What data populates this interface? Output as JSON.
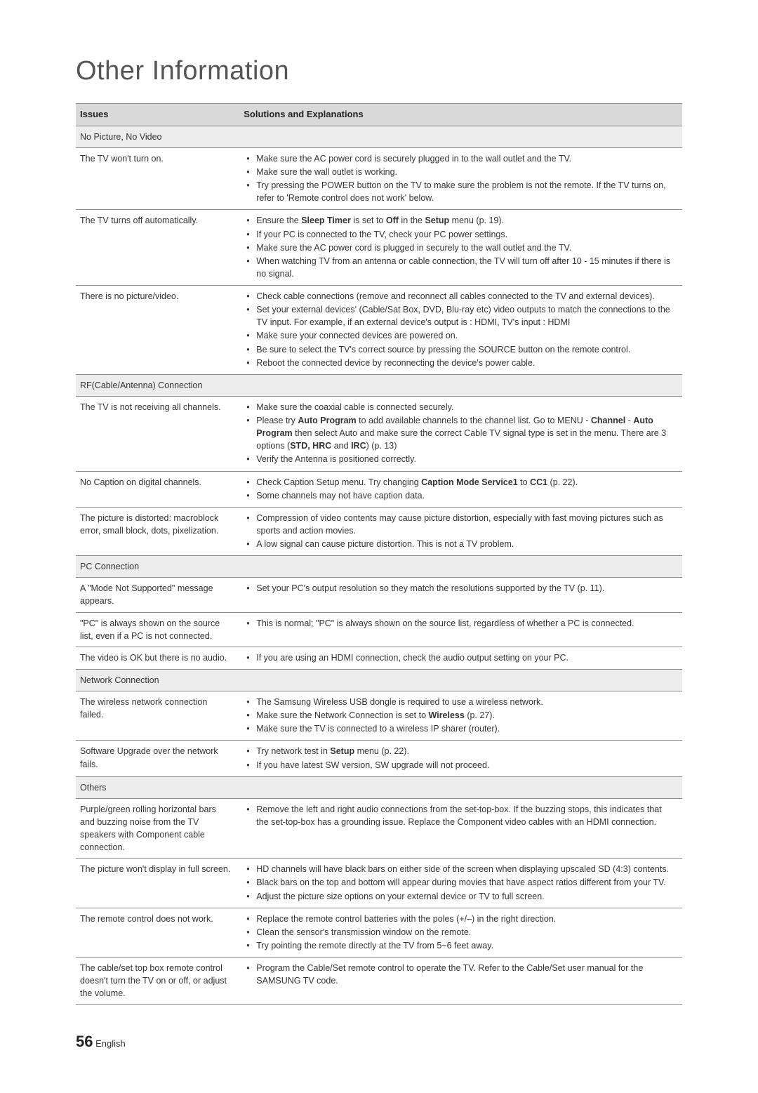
{
  "title": "Other Information",
  "columns": {
    "issues": "Issues",
    "solutions": "Solutions and Explanations"
  },
  "sections": [
    {
      "heading": "No Picture, No Video",
      "rows": [
        {
          "issue": "The TV won't turn on.",
          "items": [
            [
              {
                "t": "Make sure the AC power cord is securely plugged in to the wall outlet and the TV."
              }
            ],
            [
              {
                "t": "Make sure the wall outlet is working."
              }
            ],
            [
              {
                "t": "Try pressing the POWER button on the TV to make sure the problem is not the remote. If the TV turns on, refer to 'Remote control does not work' below."
              }
            ]
          ]
        },
        {
          "issue": "The TV turns off automatically.",
          "items": [
            [
              {
                "t": "Ensure the "
              },
              {
                "t": "Sleep Timer",
                "b": true
              },
              {
                "t": " is set to "
              },
              {
                "t": "Off",
                "b": true
              },
              {
                "t": " in the "
              },
              {
                "t": "Setup",
                "b": true
              },
              {
                "t": " menu (p. 19)."
              }
            ],
            [
              {
                "t": "If your PC is connected to the TV, check your PC power settings."
              }
            ],
            [
              {
                "t": "Make sure the AC power cord is plugged in securely to the wall outlet and the TV."
              }
            ],
            [
              {
                "t": "When watching TV from an antenna or cable connection, the TV will turn off after 10 - 15 minutes if there is no signal."
              }
            ]
          ]
        },
        {
          "issue": "There is no picture/video.",
          "items": [
            [
              {
                "t": "Check cable connections (remove and reconnect all cables connected to the TV and external devices)."
              }
            ],
            [
              {
                "t": "Set your external devices' (Cable/Sat Box, DVD, Blu-ray etc) video outputs to match the connections to the TV input. For example, if an external device's output is : HDMI, TV's input : HDMI"
              }
            ],
            [
              {
                "t": "Make sure your connected devices are powered on."
              }
            ],
            [
              {
                "t": "Be sure to select the TV's correct source by pressing the SOURCE button on the remote control."
              }
            ],
            [
              {
                "t": "Reboot the connected device by reconnecting the device's power cable."
              }
            ]
          ]
        }
      ]
    },
    {
      "heading": "RF(Cable/Antenna) Connection",
      "rows": [
        {
          "issue": "The TV is not receiving all channels.",
          "items": [
            [
              {
                "t": "Make sure the coaxial cable is connected securely."
              }
            ],
            [
              {
                "t": "Please try "
              },
              {
                "t": "Auto Program",
                "b": true
              },
              {
                "t": " to add available channels to the channel list. Go to MENU - "
              },
              {
                "t": "Channel",
                "b": true
              },
              {
                "t": " - "
              },
              {
                "t": "Auto Program",
                "b": true
              },
              {
                "t": " then select Auto and make sure the correct Cable TV signal type is set in the menu. There are 3 options ("
              },
              {
                "t": "STD, HRC",
                "b": true
              },
              {
                "t": " and "
              },
              {
                "t": "IRC",
                "b": true
              },
              {
                "t": ") (p. 13)"
              }
            ],
            [
              {
                "t": "Verify the Antenna is positioned correctly."
              }
            ]
          ]
        },
        {
          "issue": "No Caption on digital channels.",
          "items": [
            [
              {
                "t": "Check Caption Setup menu. Try changing "
              },
              {
                "t": "Caption Mode Service1",
                "b": true
              },
              {
                "t": " to "
              },
              {
                "t": "CC1",
                "b": true
              },
              {
                "t": " (p. 22)."
              }
            ],
            [
              {
                "t": "Some channels may not have caption data."
              }
            ]
          ]
        },
        {
          "issue": "The picture is distorted: macroblock error, small block, dots, pixelization.",
          "items": [
            [
              {
                "t": "Compression of video contents may cause picture distortion, especially with fast moving pictures such as sports and action movies."
              }
            ],
            [
              {
                "t": "A low signal can cause picture distortion. This is not a TV problem."
              }
            ]
          ]
        }
      ]
    },
    {
      "heading": "PC Connection",
      "rows": [
        {
          "issue": "A \"Mode Not Supported\" message appears.",
          "items": [
            [
              {
                "t": "Set your PC's output resolution so they match the resolutions supported by the TV (p. 11)."
              }
            ]
          ]
        },
        {
          "issue": "\"PC\" is always shown on the source list, even if a PC is not connected.",
          "items": [
            [
              {
                "t": "This is normal; \"PC\" is always shown on the source list, regardless of whether a PC is connected."
              }
            ]
          ]
        },
        {
          "issue": "The video is OK but there is no audio.",
          "items": [
            [
              {
                "t": "If you are using an HDMI connection, check the audio output setting on your PC."
              }
            ]
          ]
        }
      ]
    },
    {
      "heading": "Network Connection",
      "rows": [
        {
          "issue": "The wireless network connection failed.",
          "items": [
            [
              {
                "t": "The Samsung Wireless USB dongle is required to use a wireless network."
              }
            ],
            [
              {
                "t": "Make sure the Network Connection is set to "
              },
              {
                "t": "Wireless",
                "b": true
              },
              {
                "t": " (p. 27)."
              }
            ],
            [
              {
                "t": "Make sure the TV is connected to a wireless IP sharer (router)."
              }
            ]
          ]
        },
        {
          "issue": "Software Upgrade over the network fails.",
          "items": [
            [
              {
                "t": "Try network test in "
              },
              {
                "t": "Setup",
                "b": true
              },
              {
                "t": " menu (p. 22)."
              }
            ],
            [
              {
                "t": "If you have latest SW version, SW upgrade will not proceed."
              }
            ]
          ]
        }
      ]
    },
    {
      "heading": "Others",
      "rows": [
        {
          "issue": "Purple/green rolling horizontal bars and buzzing noise from the TV speakers with Component cable connection.",
          "items": [
            [
              {
                "t": "Remove the left and right audio connections from the set-top-box. If the buzzing stops, this indicates that the set-top-box has a grounding issue. Replace the Component video cables with an HDMI connection."
              }
            ]
          ]
        },
        {
          "issue": "The picture won't display in full screen.",
          "items": [
            [
              {
                "t": "HD channels will have black bars on either side of the screen when displaying upscaled SD (4:3) contents."
              }
            ],
            [
              {
                "t": "Black bars on the top and bottom will appear during movies that have aspect ratios different from your TV."
              }
            ],
            [
              {
                "t": "Adjust the picture size options on your external device or TV to full screen."
              }
            ]
          ]
        },
        {
          "issue": "The remote control does not work.",
          "items": [
            [
              {
                "t": "Replace the remote control batteries with the poles (+/–) in the right direction."
              }
            ],
            [
              {
                "t": "Clean the sensor's transmission window on the remote."
              }
            ],
            [
              {
                "t": "Try pointing the remote directly at the TV from 5~6 feet away."
              }
            ]
          ]
        },
        {
          "issue": "The cable/set top box remote control doesn't turn the TV on or off, or adjust the volume.",
          "items": [
            [
              {
                "t": "Program the Cable/Set remote control to operate the TV. Refer to the Cable/Set user manual for the SAMSUNG TV code."
              }
            ]
          ]
        }
      ]
    }
  ],
  "footer": {
    "pageNumber": "56",
    "lang": "English"
  }
}
